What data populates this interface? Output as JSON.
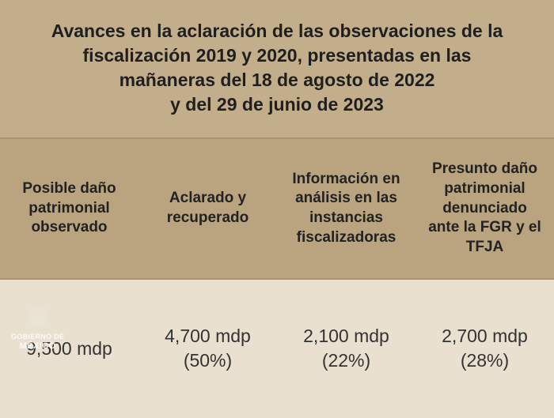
{
  "title": {
    "line1": "Avances en la aclaración de las observaciones de la",
    "line2": "fiscalización 2019 y 2020, presentadas en las",
    "line3": "mañaneras del 18 de agosto de 2022",
    "line4": "y del 29 de junio de 2023",
    "fontsize": 23,
    "fontweight": 700,
    "background_color": "#c2ae8b",
    "text_color": "#1f1f1f"
  },
  "table": {
    "type": "table",
    "header_background": "#b9a47f",
    "data_background": "#e9e0cf",
    "border_color": "#a89470",
    "header_fontsize": 19,
    "data_fontsize": 23,
    "columns": [
      {
        "label": "Posible daño patrimonial observado"
      },
      {
        "label": "Aclarado y recuperado"
      },
      {
        "label": "Información en análisis en las instancias fiscalizadoras"
      },
      {
        "label": "Presunto daño patrimonial denunciado ante la FGR y el TFJA"
      }
    ],
    "row": {
      "cells": [
        {
          "value": "9,500 mdp",
          "pct": ""
        },
        {
          "value": "4,700 mdp",
          "pct": "(50%)"
        },
        {
          "value": "2,100 mdp",
          "pct": "(22%)"
        },
        {
          "value": "2,700 mdp",
          "pct": "(28%)"
        }
      ]
    }
  },
  "watermark": {
    "line1": "GOBIERNO DE",
    "line2": "MÉXICO",
    "color": "#ffffff"
  },
  "palette": {
    "page_background": "#b9a47f"
  }
}
